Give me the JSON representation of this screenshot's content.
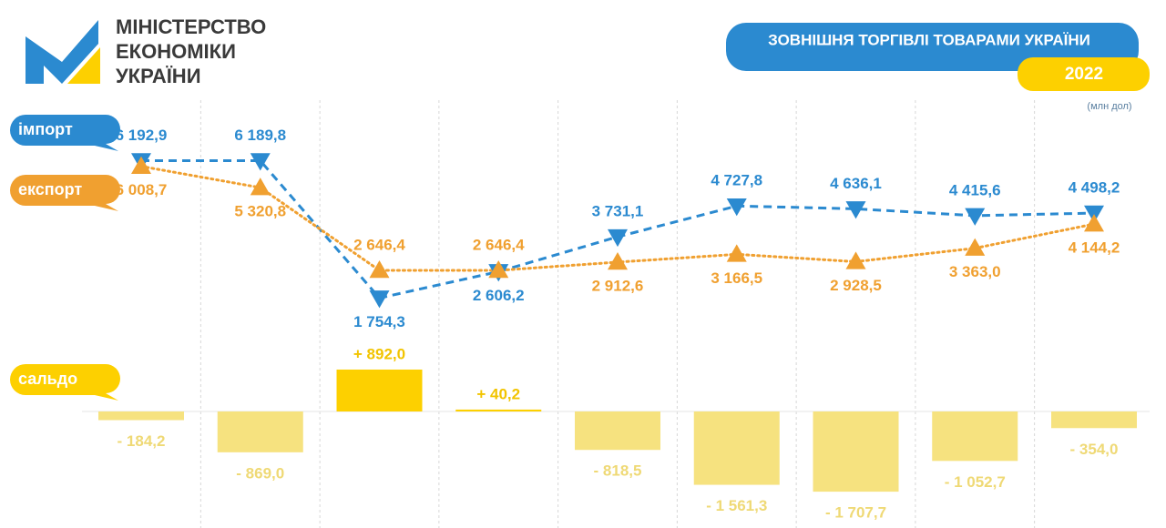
{
  "header": {
    "logo": [
      "МІНІСТЕРСТВО",
      "ЕКОНОМІКИ",
      "УКРАЇНИ"
    ],
    "title": "ЗОВНІШНЯ ТОРГІВЛІ ТОВАРАМИ УКРАЇНИ",
    "year": "2022",
    "unit": "(млн дол)"
  },
  "chart_data": [
    {
      "type": "line",
      "categories": [
        null,
        null,
        null,
        null,
        null,
        null,
        null,
        null,
        null
      ],
      "series": [
        {
          "name": "імпорт",
          "color": "#2b8ad0",
          "marker": "triangle-down",
          "line_style": "dashed",
          "values": [
            6192.9,
            6189.8,
            1754.3,
            2606.2,
            3731.1,
            4727.8,
            4636.1,
            4415.6,
            4498.2
          ],
          "value_labels": [
            "6 192,9",
            "6 189,8",
            "1 754,3",
            "2 606,2",
            "3 731,1",
            "4 727,8",
            "4 636,1",
            "4 415,6",
            "4 498,2"
          ]
        },
        {
          "name": "експорт",
          "color": "#f0a030",
          "marker": "triangle-up",
          "line_style": "dotted",
          "values": [
            6008.7,
            5320.8,
            2646.4,
            2646.4,
            2912.6,
            3166.5,
            2928.5,
            3363.0,
            4144.2
          ],
          "value_labels": [
            "6 008,7",
            "5 320,8",
            "2 646,4",
            "2 646,4",
            "2 912,6",
            "3 166,5",
            "2 928,5",
            "3 363,0",
            "4 144,2"
          ]
        }
      ]
    },
    {
      "type": "bar",
      "categories": [
        null,
        null,
        null,
        null,
        null,
        null,
        null,
        null,
        null
      ],
      "series": [
        {
          "name": "сальдо",
          "color": "#fdd000",
          "negative_color": "#f6e27f",
          "values": [
            -184.2,
            -869.0,
            892.0,
            40.2,
            -818.5,
            -1561.3,
            -1707.7,
            -1052.7,
            -354.0
          ],
          "value_labels": [
            "- 184,2",
            "- 869,0",
            "+ 892,0",
            "+ 40,2",
            "- 818,5",
            "- 1 561,3",
            "- 1 707,7",
            "- 1 052,7",
            "- 354,0"
          ]
        }
      ]
    }
  ]
}
